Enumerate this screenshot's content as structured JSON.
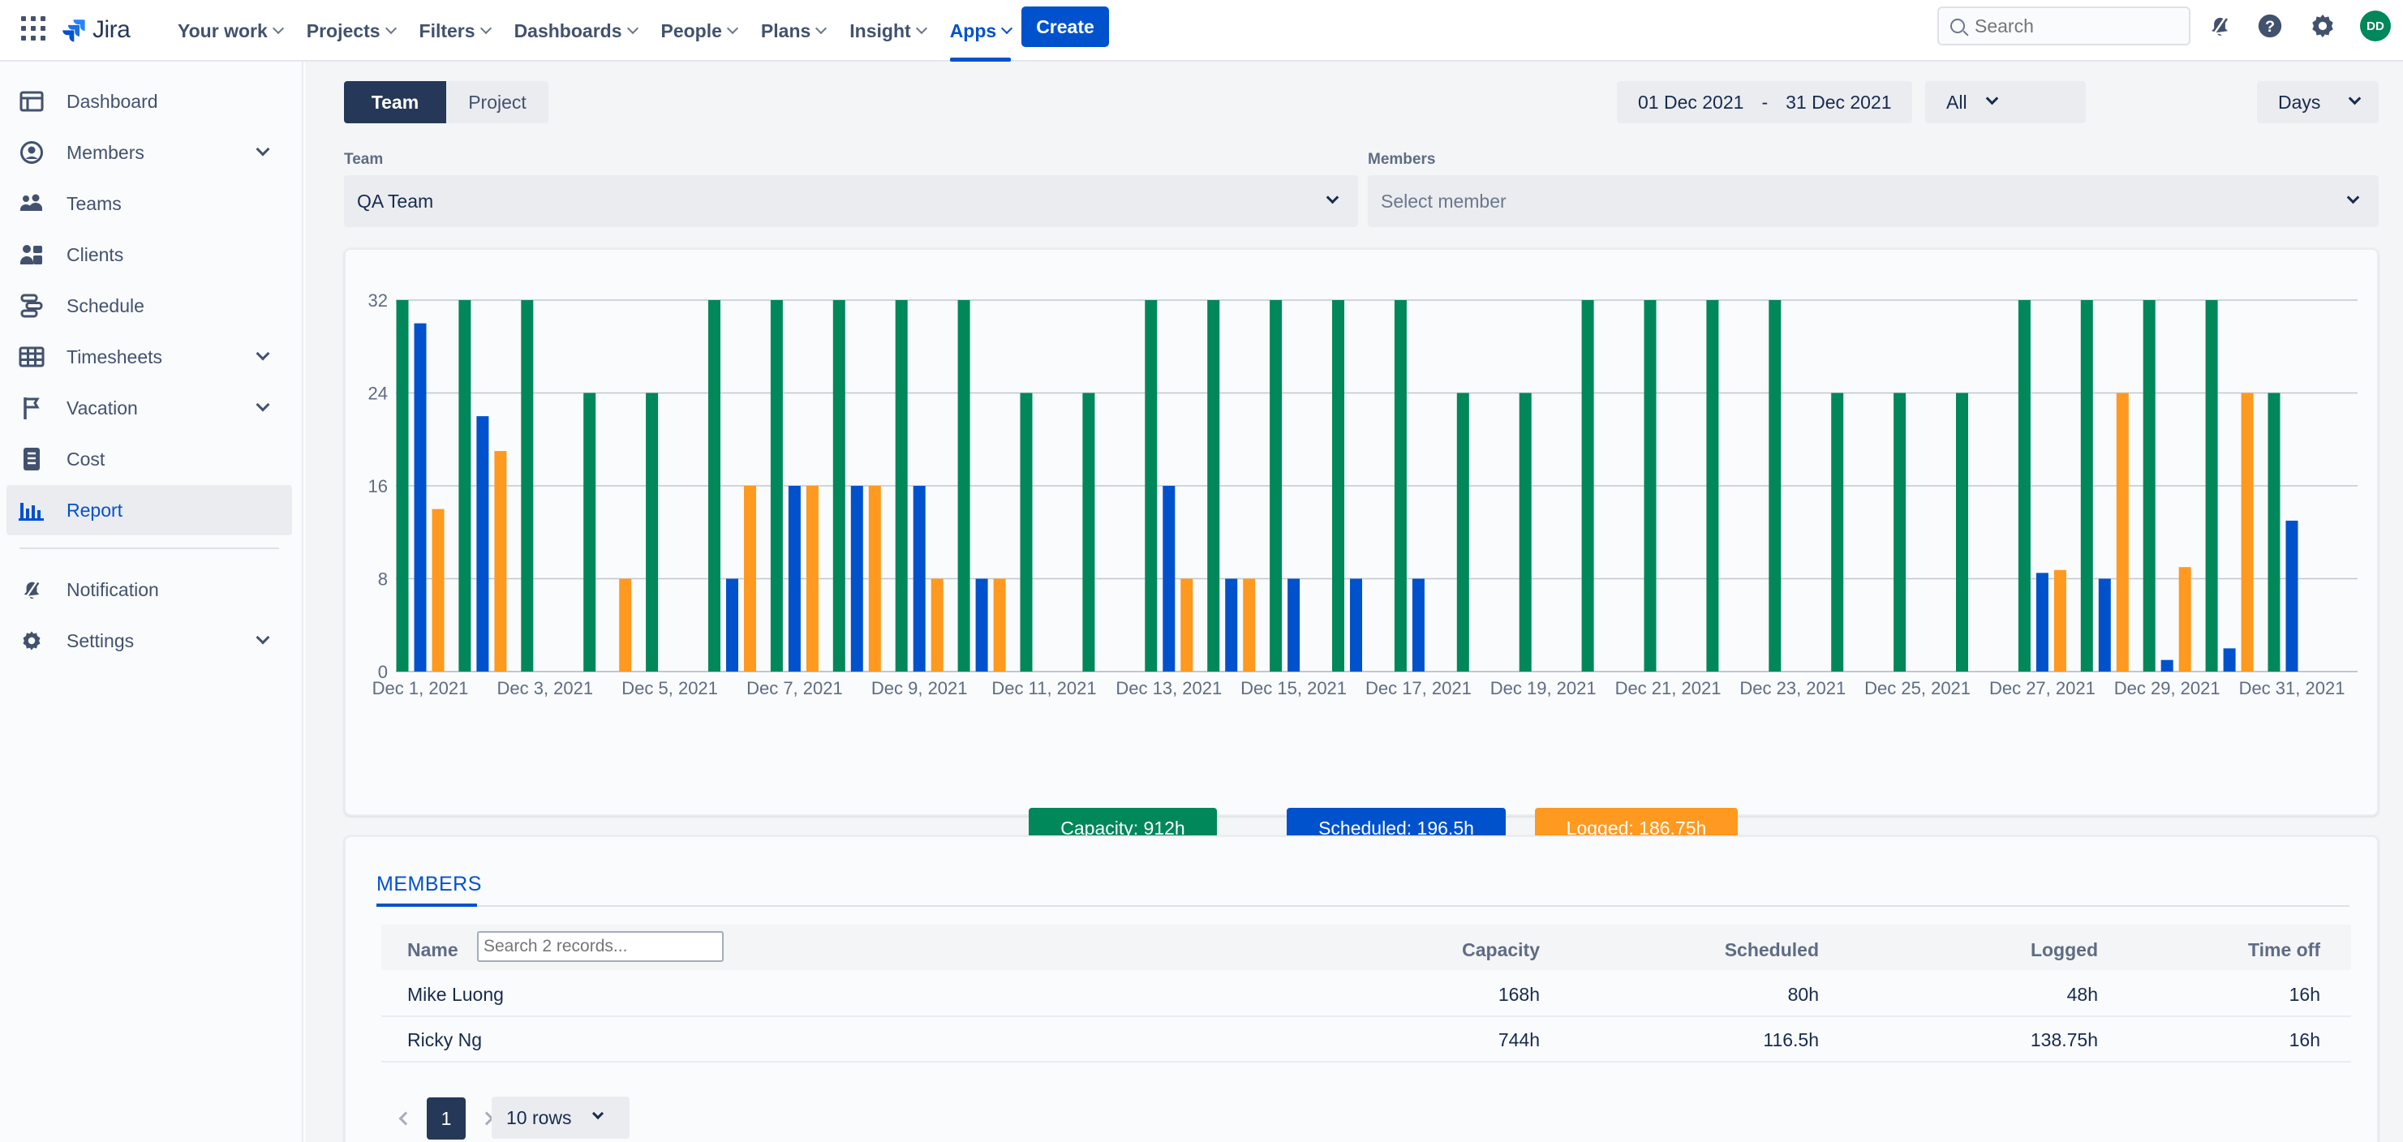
{
  "topnav": {
    "logo_text": "Jira",
    "items": [
      {
        "label": "Your work"
      },
      {
        "label": "Projects"
      },
      {
        "label": "Filters"
      },
      {
        "label": "Dashboards"
      },
      {
        "label": "People"
      },
      {
        "label": "Plans"
      },
      {
        "label": "Insight"
      },
      {
        "label": "Apps",
        "active": true
      }
    ],
    "create_label": "Create",
    "search_placeholder": "Search",
    "avatar_initials": "DD"
  },
  "sidebar": {
    "items": [
      {
        "label": "Dashboard",
        "icon": "dashboard-icon"
      },
      {
        "label": "Members",
        "icon": "user-circle-icon",
        "expandable": true
      },
      {
        "label": "Teams",
        "icon": "people-group-icon"
      },
      {
        "label": "Clients",
        "icon": "clients-icon"
      },
      {
        "label": "Schedule",
        "icon": "schedule-icon"
      },
      {
        "label": "Timesheets",
        "icon": "table-icon",
        "expandable": true
      },
      {
        "label": "Vacation",
        "icon": "flag-icon",
        "expandable": true
      },
      {
        "label": "Cost",
        "icon": "document-icon"
      },
      {
        "label": "Report",
        "icon": "bar-chart-icon",
        "active": true
      },
      {
        "label": "Notification",
        "icon": "bell-icon"
      },
      {
        "label": "Settings",
        "icon": "gear-icon",
        "expandable": true
      }
    ]
  },
  "filters": {
    "view_tabs": {
      "team": "Team",
      "project": "Project"
    },
    "date_from": "01 Dec 2021",
    "date_sep": "-",
    "date_to": "31 Dec 2021",
    "scope_value": "All",
    "granularity_value": "Days",
    "team_label": "Team",
    "team_value": "QA Team",
    "members_label": "Members",
    "members_placeholder": "Select member"
  },
  "chart_data": {
    "type": "bar",
    "x_tick_labels": [
      "Dec 1, 2021",
      "Dec 3, 2021",
      "Dec 5, 2021",
      "Dec 7, 2021",
      "Dec 9, 2021",
      "Dec 11, 2021",
      "Dec 13, 2021",
      "Dec 15, 2021",
      "Dec 17, 2021",
      "Dec 19, 2021",
      "Dec 21, 2021",
      "Dec 23, 2021",
      "Dec 25, 2021",
      "Dec 27, 2021",
      "Dec 29, 2021",
      "Dec 31, 2021"
    ],
    "ylim": [
      0,
      32
    ],
    "yticks": [
      0,
      8,
      16,
      24,
      32
    ],
    "grid": true,
    "series": [
      {
        "key": "capacity",
        "color": "#00875a",
        "values": [
          32,
          32,
          32,
          24,
          24,
          32,
          32,
          32,
          32,
          32,
          24,
          24,
          32,
          32,
          32,
          32,
          32,
          24,
          24,
          32,
          32,
          32,
          32,
          24,
          24,
          24,
          32,
          32,
          32,
          32,
          24
        ]
      },
      {
        "key": "scheduled",
        "color": "#0052cc",
        "values": [
          30,
          22,
          0,
          0,
          0,
          8,
          16,
          16,
          16,
          8,
          0,
          0,
          16,
          8,
          8,
          8,
          8,
          0,
          0,
          0,
          0,
          0,
          0,
          0,
          0,
          0,
          8.5,
          8,
          1,
          2,
          13
        ]
      },
      {
        "key": "logged",
        "color": "#ff991f",
        "values": [
          14,
          19,
          0,
          8,
          0,
          16,
          16,
          16,
          8,
          8,
          0,
          0,
          8,
          8,
          0,
          0,
          0,
          0,
          0,
          0,
          0,
          0,
          0,
          0,
          0,
          0,
          8.75,
          24,
          9,
          24,
          0
        ]
      }
    ],
    "legend": [
      {
        "label": "Capacity: 912h",
        "color": "#00875a"
      },
      {
        "label": "Scheduled: 196.5h",
        "color": "#0052cc"
      },
      {
        "label": "Logged: 186.75h",
        "color": "#ff991f"
      }
    ],
    "legend_placement": "bottom-center"
  },
  "members_table": {
    "tab_label": "MEMBERS",
    "columns": {
      "name": "Name",
      "capacity": "Capacity",
      "scheduled": "Scheduled",
      "logged": "Logged",
      "time_off": "Time off"
    },
    "search_placeholder": "Search 2 records...",
    "rows": [
      {
        "name": "Mike Luong",
        "capacity": "168h",
        "scheduled": "80h",
        "logged": "48h",
        "time_off": "16h"
      },
      {
        "name": "Ricky Ng",
        "capacity": "744h",
        "scheduled": "116.5h",
        "logged": "138.75h",
        "time_off": "16h"
      }
    ],
    "pagination": {
      "current_page": "1",
      "rows_per_page": "10 rows"
    }
  }
}
